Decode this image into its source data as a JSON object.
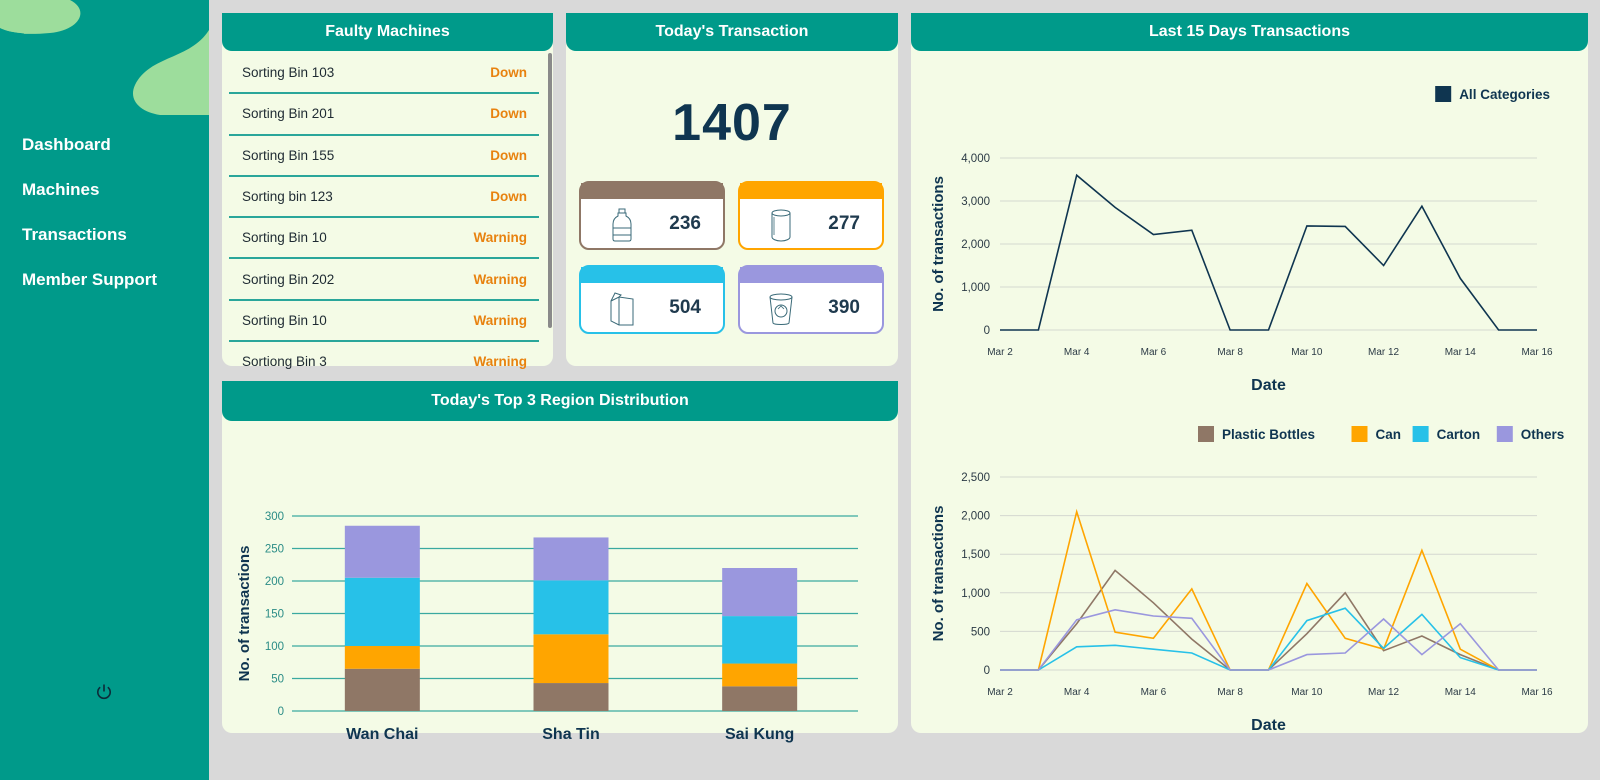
{
  "nav": {
    "items": [
      "Dashboard",
      "Machines",
      "Transactions",
      "Member Support"
    ]
  },
  "colors": {
    "primary": "#009a8a",
    "card_bg": "#f4fbe6",
    "dark_text": "#0f3550",
    "down": "#e8820f",
    "plastic": "#8f7766",
    "can": "#ffa500",
    "carton": "#27c1e8",
    "others": "#9a97de"
  },
  "faulty": {
    "title": "Faulty Machines",
    "rows": [
      {
        "name": "Sorting Bin 103",
        "status": "Down"
      },
      {
        "name": "Sorting Bin 201",
        "status": "Down"
      },
      {
        "name": "Sorting Bin 155",
        "status": "Down"
      },
      {
        "name": "Sorting bin 123",
        "status": "Down"
      },
      {
        "name": "Sorting Bin 10",
        "status": "Warning"
      },
      {
        "name": "Sorting Bin 202",
        "status": "Warning"
      },
      {
        "name": "Sorting Bin 10",
        "status": "Warning"
      },
      {
        "name": "Sortiong Bin 3",
        "status": "Warning"
      }
    ]
  },
  "today": {
    "title": "Today's Transaction",
    "total": "1407",
    "categories": [
      {
        "icon": "plastic-bottle-icon",
        "value": "236",
        "color": "#8f7766"
      },
      {
        "icon": "can-icon",
        "value": "277",
        "color": "#ffa500"
      },
      {
        "icon": "carton-icon",
        "value": "504",
        "color": "#27c1e8"
      },
      {
        "icon": "others-cup-icon",
        "value": "390",
        "color": "#9a97de"
      }
    ]
  },
  "last15": {
    "title": "Last 15 Days Transactions"
  },
  "region": {
    "title": "Today's Top 3 Region Distribution"
  },
  "chart_data": [
    {
      "type": "line",
      "x": [
        "Mar 2",
        "Mar 3",
        "Mar 4",
        "Mar 5",
        "Mar 6",
        "Mar 7",
        "Mar 8",
        "Mar 9",
        "Mar 10",
        "Mar 11",
        "Mar 12",
        "Mar 13",
        "Mar 14",
        "Mar 15",
        "Mar 16"
      ],
      "xticks": [
        "Mar 2",
        "Mar 4",
        "Mar 6",
        "Mar 8",
        "Mar 10",
        "Mar 12",
        "Mar 14",
        "Mar 16"
      ],
      "series": [
        {
          "name": "All Categories",
          "color": "#0f3550",
          "values": [
            0,
            0,
            3600,
            2850,
            2220,
            2320,
            0,
            0,
            2420,
            2410,
            1500,
            2880,
            1200,
            0,
            0
          ]
        }
      ],
      "xlabel": "Date",
      "ylabel": "No. of transactions",
      "ylim": [
        0,
        4000
      ],
      "yticks": [
        "0",
        "1,000",
        "2,000",
        "3,000",
        "4,000"
      ],
      "legend": "top-right",
      "grid": true
    },
    {
      "type": "line",
      "x": [
        "Mar 2",
        "Mar 3",
        "Mar 4",
        "Mar 5",
        "Mar 6",
        "Mar 7",
        "Mar 8",
        "Mar 9",
        "Mar 10",
        "Mar 11",
        "Mar 12",
        "Mar 13",
        "Mar 14",
        "Mar 15",
        "Mar 16"
      ],
      "xticks": [
        "Mar 2",
        "Mar 4",
        "Mar 6",
        "Mar 8",
        "Mar 10",
        "Mar 12",
        "Mar 14",
        "Mar 16"
      ],
      "series": [
        {
          "name": "Plastic Bottles",
          "color": "#8f7766",
          "values": [
            0,
            0,
            600,
            1290,
            870,
            400,
            0,
            0,
            470,
            1000,
            250,
            440,
            200,
            0,
            0
          ]
        },
        {
          "name": "Can",
          "color": "#ffa500",
          "values": [
            0,
            0,
            2050,
            490,
            410,
            1050,
            0,
            0,
            1120,
            410,
            270,
            1550,
            270,
            0,
            0
          ]
        },
        {
          "name": "Carton",
          "color": "#27c1e8",
          "values": [
            0,
            0,
            300,
            320,
            270,
            220,
            0,
            0,
            640,
            800,
            280,
            720,
            160,
            0,
            0
          ]
        },
        {
          "name": "Others",
          "color": "#9a97de",
          "values": [
            0,
            0,
            650,
            780,
            700,
            670,
            0,
            0,
            200,
            220,
            660,
            200,
            600,
            0,
            0
          ]
        }
      ],
      "xlabel": "Date",
      "ylabel": "No. of transactions",
      "ylim": [
        0,
        2500
      ],
      "yticks": [
        "0",
        "500",
        "1,000",
        "1,500",
        "2,000",
        "2,500"
      ],
      "legend": "top-right",
      "grid": true
    },
    {
      "type": "bar",
      "stacked": true,
      "categories": [
        "Wan Chai",
        "Sha Tin",
        "Sai Kung"
      ],
      "series": [
        {
          "name": "Plastic Bottles",
          "color": "#8f7766",
          "values": [
            65,
            43,
            38
          ]
        },
        {
          "name": "Can",
          "color": "#ffa500",
          "values": [
            35,
            75,
            35
          ]
        },
        {
          "name": "Carton",
          "color": "#27c1e8",
          "values": [
            105,
            83,
            73
          ]
        },
        {
          "name": "Others",
          "color": "#9a97de",
          "values": [
            80,
            66,
            74
          ]
        }
      ],
      "ylabel": "No. of transactions",
      "ylim": [
        0,
        300
      ],
      "yticks": [
        "0",
        "50",
        "100",
        "150",
        "200",
        "250",
        "300"
      ],
      "grid": true
    }
  ]
}
